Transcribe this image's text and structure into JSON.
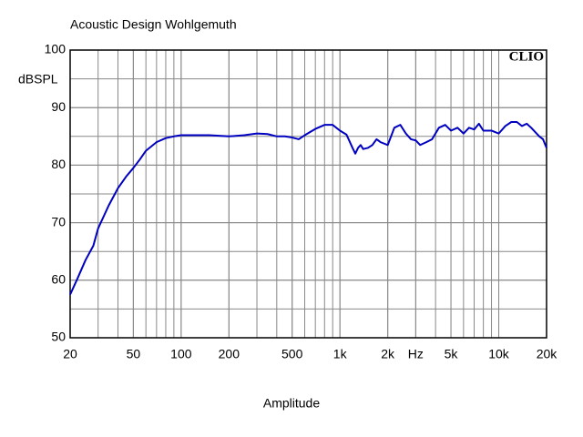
{
  "chart_data": {
    "type": "line",
    "title": "Acoustic Design Wohlgemuth",
    "ylabel": "dBSPL",
    "xlabel": "Amplitude",
    "watermark": "CLIO",
    "xscale": "log",
    "grid": true,
    "xlim": [
      20,
      20000
    ],
    "ylim": [
      50,
      100
    ],
    "xticks": [
      20,
      50,
      100,
      200,
      500,
      {
        "value": 1000,
        "label": "1k"
      },
      {
        "value": 2000,
        "label": "2k"
      },
      {
        "value": 3000,
        "label": "Hz"
      },
      {
        "value": 5000,
        "label": "5k"
      },
      {
        "value": 10000,
        "label": "10k"
      },
      {
        "value": 20000,
        "label": "20k"
      }
    ],
    "yticks": [
      50,
      60,
      70,
      80,
      90,
      100
    ],
    "series": [
      {
        "color": "#0000c0",
        "x": [
          20,
          22,
          25,
          28,
          30,
          35,
          40,
          45,
          50,
          55,
          60,
          70,
          80,
          90,
          100,
          150,
          200,
          250,
          300,
          350,
          400,
          450,
          500,
          550,
          600,
          700,
          800,
          900,
          1000,
          1100,
          1200,
          1250,
          1300,
          1350,
          1400,
          1500,
          1600,
          1700,
          1800,
          2000,
          2200,
          2400,
          2600,
          2800,
          3000,
          3200,
          3500,
          3800,
          4200,
          4600,
          5000,
          5500,
          6000,
          6500,
          7000,
          7500,
          8000,
          9000,
          10000,
          11000,
          12000,
          13000,
          14000,
          15000,
          16000,
          18000,
          19000,
          20000
        ],
        "values": [
          57.5,
          60,
          63.5,
          66,
          69,
          73,
          76,
          78,
          79.5,
          81,
          82.5,
          84,
          84.7,
          85,
          85.2,
          85.2,
          85,
          85.2,
          85.5,
          85.4,
          85,
          85,
          84.8,
          84.5,
          85.2,
          86.3,
          87,
          87,
          86,
          85.3,
          83,
          82,
          83,
          83.5,
          82.8,
          83,
          83.5,
          84.5,
          84,
          83.5,
          86.5,
          87,
          85.5,
          84.5,
          84.3,
          83.5,
          84,
          84.5,
          86.5,
          87,
          86,
          86.5,
          85.5,
          86.5,
          86.2,
          87.2,
          86,
          86,
          85.5,
          86.8,
          87.5,
          87.5,
          86.8,
          87.2,
          86.5,
          85,
          84.5,
          83
        ]
      }
    ]
  }
}
